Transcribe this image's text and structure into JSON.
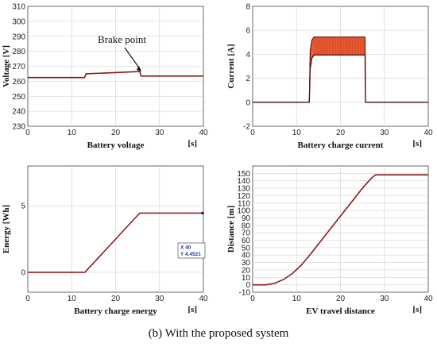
{
  "caption": "(b) With the proposed system",
  "chart_data": [
    {
      "id": "voltage",
      "type": "line",
      "title": "",
      "xlabel": "Battery voltage",
      "xunit": "[s]",
      "ylabel": "Voltage [V]",
      "xlim": [
        0,
        40
      ],
      "ylim": [
        230,
        310
      ],
      "xticks": [
        0,
        10,
        20,
        30,
        40
      ],
      "yticks": [
        230,
        240,
        250,
        260,
        270,
        280,
        290,
        300,
        310
      ],
      "grid": true,
      "line_color": "#8b1a1a",
      "annotation": {
        "text": "Brake point",
        "x": 25.5,
        "y": 266
      },
      "series": [
        {
          "x": [
            0,
            12.9,
            13.3,
            25.5,
            25.8,
            40
          ],
          "y": [
            262.5,
            262.5,
            265.0,
            266.5,
            263.5,
            263.5
          ]
        }
      ]
    },
    {
      "id": "current",
      "type": "area",
      "title": "",
      "xlabel": "Battery charge current",
      "xunit": "[s]",
      "ylabel": "Current [A]",
      "xlim": [
        0,
        40
      ],
      "ylim": [
        -2,
        8
      ],
      "xticks": [
        0,
        10,
        20,
        30,
        40
      ],
      "yticks": [
        -2,
        0,
        2,
        4,
        6,
        8
      ],
      "grid": true,
      "band_color": "#e8532a",
      "line_color": "#5a1010",
      "series": [
        {
          "name": "",
          "x": [
            0,
            12.9,
            13.1,
            13.5,
            14.0,
            25.6,
            25.7,
            40
          ],
          "y": [
            0,
            0,
            2.8,
            3.7,
            3.95,
            3.95,
            0,
            0
          ]
        },
        {
          "name": "",
          "x": [
            0,
            12.9,
            13.1,
            13.5,
            14.0,
            25.6,
            25.7,
            40
          ],
          "y": [
            0,
            0,
            4.3,
            5.2,
            5.45,
            5.45,
            0,
            0
          ]
        }
      ]
    },
    {
      "id": "energy",
      "type": "line",
      "title": "",
      "xlabel": "Battery charge energy",
      "xunit": "[s]",
      "ylabel": "Energy [Wh]",
      "xlim": [
        0,
        40
      ],
      "ylim": [
        -1.5,
        8
      ],
      "xticks": [
        0,
        10,
        20,
        30,
        40
      ],
      "yticks": [
        0,
        5
      ],
      "grid": true,
      "line_color": "#8b1a1a",
      "datatip": {
        "x_label": "X 40",
        "y_label": "Y 4.4521"
      },
      "series": [
        {
          "x": [
            0,
            13,
            25.5,
            40
          ],
          "y": [
            0,
            0,
            4.4521,
            4.4521
          ]
        }
      ]
    },
    {
      "id": "distance",
      "type": "line",
      "title": "",
      "xlabel": "EV travel distance",
      "xunit": "[s]",
      "ylabel": "Distance [m]",
      "xlim": [
        0,
        40
      ],
      "ylim": [
        -10,
        160
      ],
      "xticks": [
        0,
        10,
        20,
        30,
        40
      ],
      "yticks": [
        -10,
        0,
        10,
        20,
        30,
        40,
        50,
        60,
        70,
        80,
        90,
        100,
        110,
        120,
        130,
        140,
        150
      ],
      "grid": true,
      "line_color": "#8b1a1a",
      "series": [
        {
          "x": [
            0,
            3,
            5,
            7,
            9,
            11,
            13,
            15,
            17,
            19,
            21,
            23,
            25,
            26.5,
            27.5,
            28,
            40
          ],
          "y": [
            0,
            0,
            2,
            7,
            15,
            26,
            40,
            55,
            70,
            85,
            100,
            115,
            130,
            140,
            146,
            148,
            148
          ]
        }
      ]
    }
  ]
}
